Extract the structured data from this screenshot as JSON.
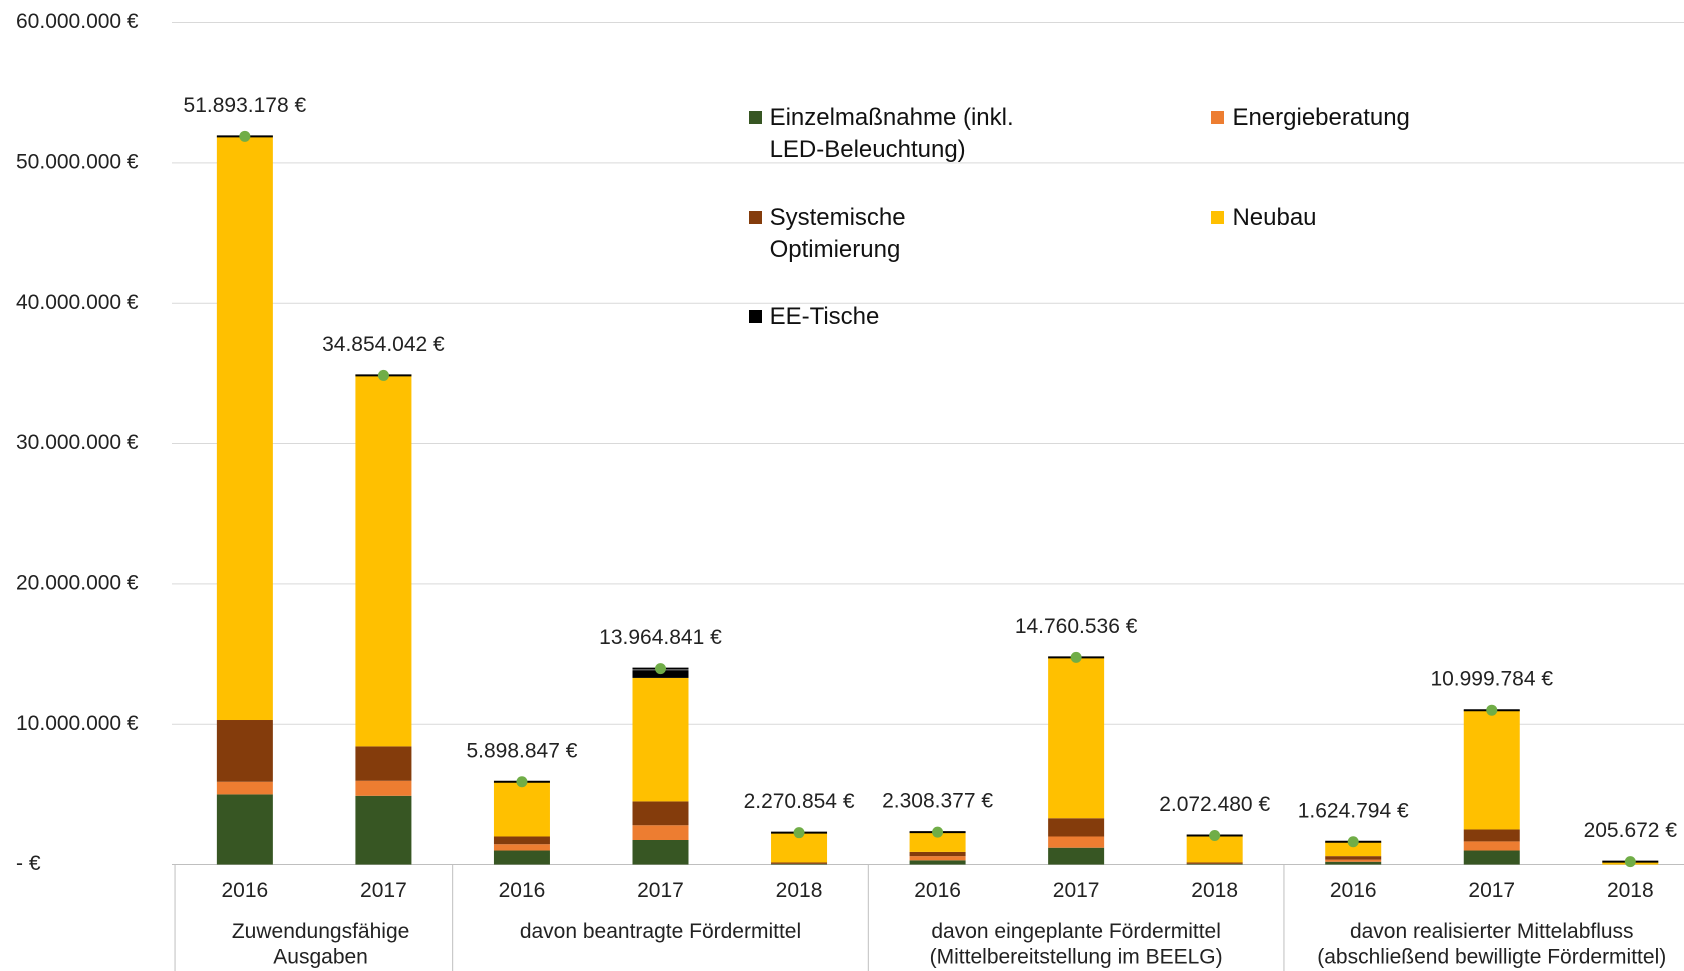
{
  "chart_data": {
    "type": "stacked-bar",
    "categories": [
      "2016",
      "2017",
      "2016",
      "2017",
      "2018",
      "2016",
      "2017",
      "2018",
      "2016",
      "2017",
      "2018"
    ],
    "groups": [
      {
        "label": [
          "Zuwendungsfähige",
          "Ausgaben"
        ],
        "size": 2
      },
      {
        "label": [
          "davon beantragte Fördermittel"
        ],
        "size": 3
      },
      {
        "label": [
          "davon eingeplante Fördermittel",
          "(Mittelbereitstellung im BEELG)"
        ],
        "size": 3
      },
      {
        "label": [
          "davon realisierter Mittelabfluss",
          "(abschließend bewilligte Fördermittel)"
        ],
        "size": 3
      }
    ],
    "series": [
      {
        "name": "Einzelmaßnahme (inkl. LED-Beleuchtung)",
        "color": "#375623",
        "values": [
          5000000,
          4900000,
          1000000,
          1750000,
          50000,
          300000,
          1200000,
          50000,
          200000,
          1000000,
          0
        ]
      },
      {
        "name": "Energieberatung",
        "color": "#ed7d31",
        "values": [
          900000,
          1070000,
          450000,
          1050000,
          0,
          300000,
          800000,
          0,
          150000,
          650000,
          0
        ]
      },
      {
        "name": "Systemische Optimierung",
        "color": "#843c0c",
        "values": [
          4400000,
          2450000,
          550000,
          1700000,
          100000,
          300000,
          1300000,
          100000,
          250000,
          850000,
          0
        ]
      },
      {
        "name": "Neubau",
        "color": "#ffc000",
        "values": [
          41600000,
          26500000,
          3900000,
          8800000,
          2100000,
          1400000,
          11450000,
          1900000,
          1000000,
          8500000,
          200000
        ]
      },
      {
        "name": "EE-Tische",
        "color": "#000000",
        "values": [
          0,
          0,
          0,
          550000,
          0,
          0,
          0,
          0,
          0,
          0,
          0
        ]
      }
    ],
    "totals": {
      "color": "#70ad47",
      "values": [
        51893178,
        34854042,
        5898847,
        13964841,
        2270854,
        2308377,
        14760536,
        2072480,
        1624794,
        10999784,
        205672
      ],
      "value_labels": [
        "51.893.178 €",
        "34.854.042 €",
        "5.898.847 €",
        "13.964.841 €",
        "2.270.854 €",
        "2.308.377 €",
        "14.760.536 €",
        "2.072.480 €",
        "1.624.794 €",
        "10.999.784 €",
        "205.672 €"
      ]
    },
    "ylim": [
      0,
      60000000
    ],
    "yticks": [
      {
        "value": 0,
        "label": "-  €"
      },
      {
        "value": 10000000,
        "label": "10.000.000 €"
      },
      {
        "value": 20000000,
        "label": "20.000.000 €"
      },
      {
        "value": 30000000,
        "label": "30.000.000 €"
      },
      {
        "value": 40000000,
        "label": "40.000.000 €"
      },
      {
        "value": 50000000,
        "label": "50.000.000 €"
      },
      {
        "value": 60000000,
        "label": "60.000.000 €"
      }
    ],
    "grid": true
  }
}
